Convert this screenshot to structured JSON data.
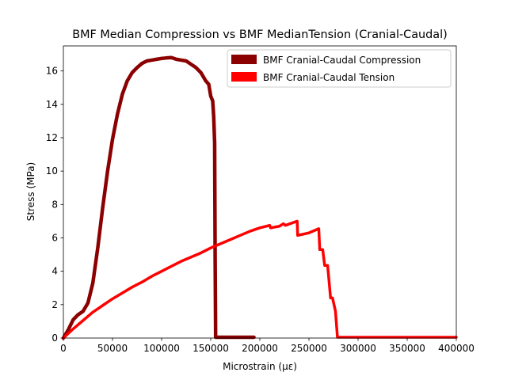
{
  "chart_data": {
    "type": "line",
    "title": "BMF Median Compression vs BMF MedianTension (Cranial-Caudal)",
    "xlabel": "Microstrain (με)",
    "ylabel": "Stress (MPa)",
    "xlim": [
      0,
      400000
    ],
    "ylim": [
      0,
      17.5
    ],
    "x_ticks": [
      0,
      50000,
      100000,
      150000,
      200000,
      250000,
      300000,
      350000,
      400000
    ],
    "x_tick_labels": [
      "0",
      "50000",
      "100000",
      "150000",
      "200000",
      "250000",
      "300000",
      "350000",
      "400000"
    ],
    "y_ticks": [
      0,
      2,
      4,
      6,
      8,
      10,
      12,
      14,
      16
    ],
    "y_tick_labels": [
      "0",
      "2",
      "4",
      "6",
      "8",
      "10",
      "12",
      "14",
      "16"
    ],
    "grid": false,
    "legend_position": "top-right",
    "series": [
      {
        "name": "BMF Cranial-Caudal Compression",
        "color": "#8b0000",
        "x": [
          0,
          5000,
          10000,
          15000,
          20000,
          25000,
          30000,
          35000,
          40000,
          45000,
          50000,
          55000,
          60000,
          65000,
          70000,
          75000,
          80000,
          85000,
          90000,
          95000,
          100000,
          105000,
          110000,
          115000,
          120000,
          125000,
          130000,
          135000,
          140000,
          145000,
          148000,
          150000,
          152000,
          153000,
          154000,
          154500,
          155000,
          160000,
          170000,
          180000,
          194000
        ],
        "y": [
          0,
          0.5,
          1.1,
          1.4,
          1.6,
          2.1,
          3.3,
          5.4,
          7.8,
          10.0,
          11.9,
          13.4,
          14.6,
          15.4,
          15.9,
          16.2,
          16.45,
          16.6,
          16.65,
          16.7,
          16.75,
          16.78,
          16.8,
          16.7,
          16.65,
          16.6,
          16.4,
          16.2,
          15.9,
          15.4,
          15.2,
          14.5,
          14.2,
          13.3,
          11.7,
          4.8,
          0.05,
          0.05,
          0.05,
          0.05,
          0.05
        ]
      },
      {
        "name": "BMF Cranial-Caudal Tension",
        "color": "#ff0000",
        "x": [
          0,
          10000,
          20000,
          30000,
          40000,
          50000,
          60000,
          70000,
          80000,
          90000,
          100000,
          110000,
          120000,
          130000,
          140000,
          150000,
          160000,
          170000,
          180000,
          190000,
          200000,
          210000,
          211000,
          220000,
          224000,
          226000,
          238000,
          238500,
          250000,
          260000,
          261000,
          264000,
          266000,
          269000,
          272000,
          274000,
          277000,
          279000,
          300000,
          350000,
          400000
        ],
        "y": [
          0,
          0.55,
          1.05,
          1.55,
          1.95,
          2.35,
          2.7,
          3.05,
          3.35,
          3.7,
          4.0,
          4.3,
          4.6,
          4.85,
          5.1,
          5.4,
          5.65,
          5.9,
          6.15,
          6.4,
          6.6,
          6.75,
          6.6,
          6.7,
          6.85,
          6.75,
          7.0,
          6.15,
          6.3,
          6.55,
          5.3,
          5.3,
          4.35,
          4.35,
          2.4,
          2.4,
          1.6,
          0.05,
          0.05,
          0.05,
          0.05
        ]
      }
    ]
  }
}
